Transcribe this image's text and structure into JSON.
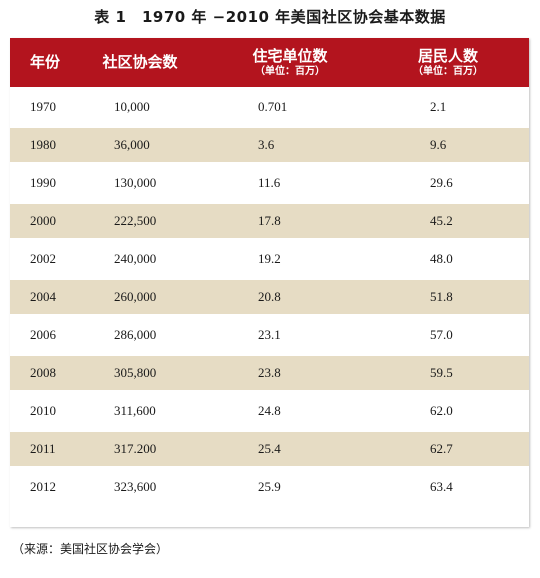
{
  "title": "表 1　1970 年 −2010 年美国社区协会基本数据",
  "header": {
    "year": "年份",
    "associations": "社区协会数",
    "housing_main": "住宅单位数",
    "housing_sub": "（单位：百万）",
    "residents_main": "居民人数",
    "residents_sub": "（单位：百万）"
  },
  "rows": [
    {
      "year": "1970",
      "associations": "10,000",
      "housing": "0.701",
      "residents": "2.1"
    },
    {
      "year": "1980",
      "associations": "36,000",
      "housing": "3.6",
      "residents": "9.6"
    },
    {
      "year": "1990",
      "associations": "130,000",
      "housing": "11.6",
      "residents": "29.6"
    },
    {
      "year": "2000",
      "associations": "222,500",
      "housing": "17.8",
      "residents": "45.2"
    },
    {
      "year": "2002",
      "associations": "240,000",
      "housing": "19.2",
      "residents": "48.0"
    },
    {
      "year": "2004",
      "associations": "260,000",
      "housing": "20.8",
      "residents": "51.8"
    },
    {
      "year": "2006",
      "associations": "286,000",
      "housing": "23.1",
      "residents": "57.0"
    },
    {
      "year": "2008",
      "associations": "305,800",
      "housing": "23.8",
      "residents": "59.5"
    },
    {
      "year": "2010",
      "associations": "311,600",
      "housing": "24.8",
      "residents": "62.0"
    },
    {
      "year": "2011",
      "associations": "317.200",
      "housing": "25.4",
      "residents": "62.7"
    },
    {
      "year": "2012",
      "associations": "323,600",
      "housing": "25.9",
      "residents": "63.4"
    }
  ],
  "source": "（来源：美国社区协会学会）",
  "colors": {
    "header_bg": "#b3141e",
    "row_shade": "#e6dcc4"
  }
}
